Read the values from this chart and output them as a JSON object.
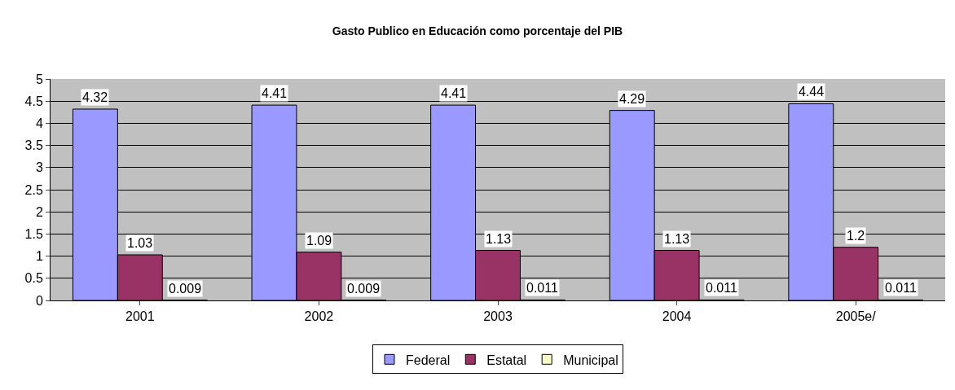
{
  "chart_data": {
    "type": "bar",
    "title": "Gasto Publico en Educación como porcentaje del PIB",
    "categories": [
      "2001",
      "2002",
      "2003",
      "2004",
      "2005e/"
    ],
    "series": [
      {
        "name": "Federal",
        "color": "#9999ff",
        "values": [
          4.32,
          4.41,
          4.41,
          4.29,
          4.44
        ]
      },
      {
        "name": "Estatal",
        "color": "#993366",
        "values": [
          1.03,
          1.09,
          1.13,
          1.13,
          1.2
        ]
      },
      {
        "name": "Municipal",
        "color": "#ffffcc",
        "values": [
          0.009,
          0.009,
          0.011,
          0.011,
          0.011
        ]
      }
    ],
    "ylim": [
      0,
      5
    ],
    "yticks": [
      0,
      0.5,
      1,
      1.5,
      2,
      2.5,
      3,
      3.5,
      4,
      4.5,
      5
    ],
    "grid": "y",
    "legend": "bottom",
    "data_labels": true
  }
}
